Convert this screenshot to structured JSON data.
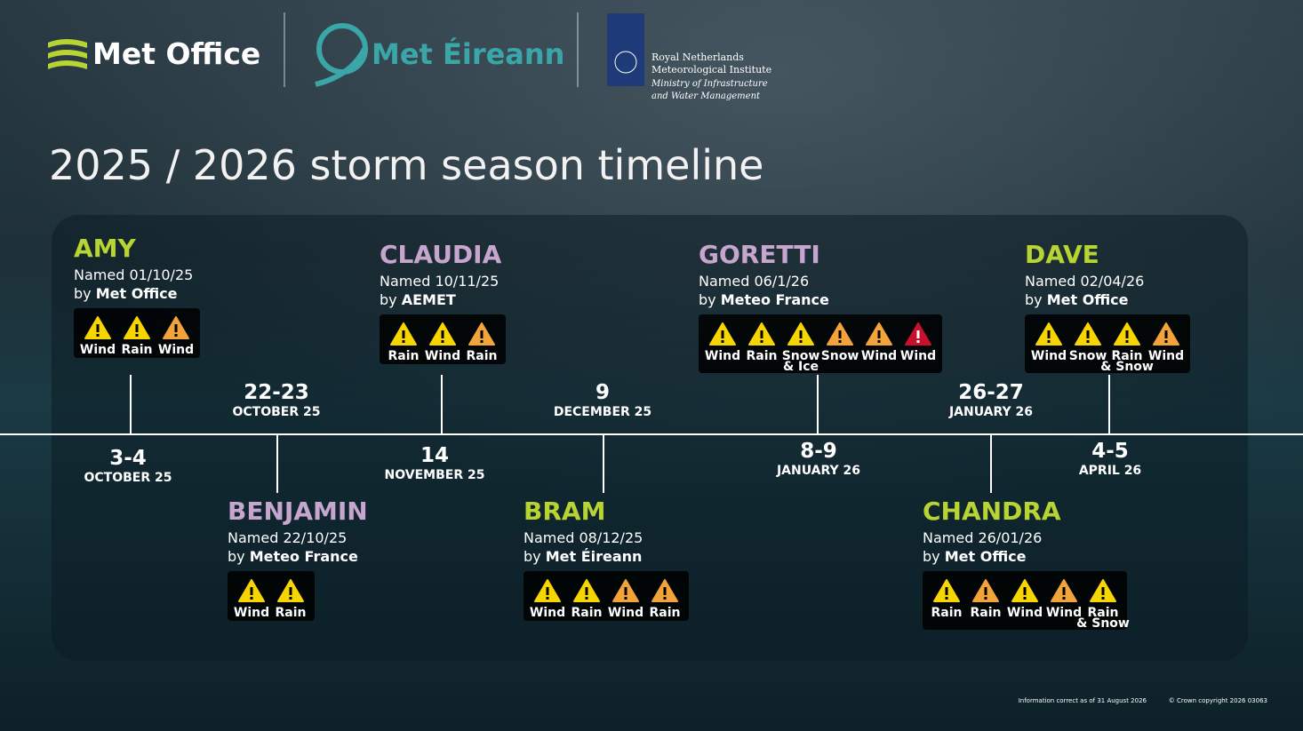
{
  "logos": {
    "met_office": "Met Office",
    "met_eireann": "Met Éireann",
    "knmi": [
      "Royal Netherlands",
      "Meteorological Institute",
      "Ministry of Infrastructure",
      "and Water Management"
    ]
  },
  "title": "2025 / 2026 storm season timeline",
  "storms": [
    {
      "name": "AMY",
      "color": "#b8d432",
      "named": "Named 01/10/25",
      "by": "by",
      "agency": "Met Office",
      "day": "3-4",
      "month": "OCTOBER 25",
      "warnings": [
        {
          "label": "Wind",
          "color": "#f7d500"
        },
        {
          "label": "Rain",
          "color": "#f7d500"
        },
        {
          "label": "Wind",
          "color": "#f2a33a"
        }
      ]
    },
    {
      "name": "BENJAMIN",
      "color": "#c6a6cf",
      "named": "Named 22/10/25",
      "by": "by",
      "agency": "Meteo France",
      "day": "22-23",
      "month": "OCTOBER 25",
      "warnings": [
        {
          "label": "Wind",
          "color": "#f7d500"
        },
        {
          "label": "Rain",
          "color": "#f7d500"
        }
      ]
    },
    {
      "name": "CLAUDIA",
      "color": "#c6a6cf",
      "named": "Named 10/11/25",
      "by": "by",
      "agency": "AEMET",
      "day": "14",
      "month": "NOVEMBER 25",
      "warnings": [
        {
          "label": "Rain",
          "color": "#f7d500"
        },
        {
          "label": "Wind",
          "color": "#f7d500"
        },
        {
          "label": "Rain",
          "color": "#f2a33a"
        }
      ]
    },
    {
      "name": "BRAM",
      "color": "#b8d432",
      "named": "Named 08/12/25",
      "by": "by",
      "agency": "Met Éireann",
      "day": "9",
      "month": "DECEMBER 25",
      "warnings": [
        {
          "label": "Wind",
          "color": "#f7d500"
        },
        {
          "label": "Rain",
          "color": "#f7d500"
        },
        {
          "label": "Wind",
          "color": "#f2a33a"
        },
        {
          "label": "Rain",
          "color": "#f2a33a"
        }
      ]
    },
    {
      "name": "GORETTI",
      "color": "#c6a6cf",
      "named": "Named 06/1/26",
      "by": "by",
      "agency": "Meteo France",
      "day": "8-9",
      "month": "JANUARY 26",
      "warnings": [
        {
          "label": "Wind",
          "color": "#f7d500"
        },
        {
          "label": "Rain",
          "color": "#f7d500"
        },
        {
          "label": "Snow & Ice",
          "color": "#f7d500"
        },
        {
          "label": "Snow",
          "color": "#f2a33a"
        },
        {
          "label": "Wind",
          "color": "#f2a33a"
        },
        {
          "label": "Wind",
          "color": "#c8102e"
        }
      ]
    },
    {
      "name": "CHANDRA",
      "color": "#b8d432",
      "named": "Named 26/01/26",
      "by": "by",
      "agency": "Met Office",
      "day": "26-27",
      "month": "JANUARY 26",
      "warnings": [
        {
          "label": "Rain",
          "color": "#f7d500"
        },
        {
          "label": "Rain",
          "color": "#f2a33a"
        },
        {
          "label": "Wind",
          "color": "#f7d500"
        },
        {
          "label": "Wind",
          "color": "#f2a33a"
        },
        {
          "label": "Rain & Snow",
          "color": "#f7d500"
        }
      ]
    },
    {
      "name": "DAVE",
      "color": "#b8d432",
      "named": "Named 02/04/26",
      "by": "by",
      "agency": "Met Office",
      "day": "4-5",
      "month": "APRIL 26",
      "warnings": [
        {
          "label": "Wind",
          "color": "#f7d500"
        },
        {
          "label": "Snow",
          "color": "#f7d500"
        },
        {
          "label": "Rain & Snow",
          "color": "#f7d500"
        },
        {
          "label": "Wind",
          "color": "#f2a33a"
        }
      ]
    }
  ],
  "footer": {
    "note": "Information correct as of 31 August 2026",
    "copyright": "© Crown copyright 2026  03063"
  }
}
